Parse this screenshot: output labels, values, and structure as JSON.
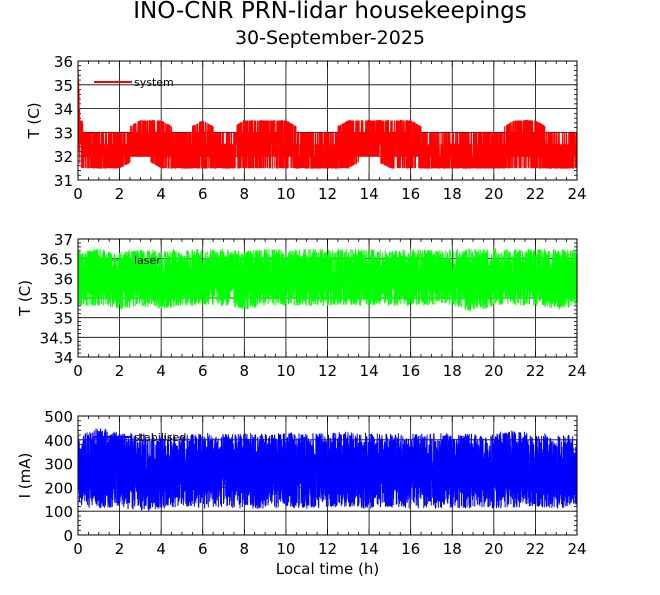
{
  "figure": {
    "title": "INO-CNR PRN-lidar housekeepings",
    "subtitle": "30-September-2025"
  },
  "chart_data": [
    {
      "type": "line",
      "ylabel": "T (C)",
      "xlabel": "",
      "xlim": [
        0,
        24
      ],
      "ylim": [
        31,
        36
      ],
      "xticks": [
        "0",
        "2",
        "4",
        "6",
        "8",
        "10",
        "12",
        "14",
        "16",
        "18",
        "20",
        "22",
        "24"
      ],
      "yticks": [
        "31",
        "32",
        "33",
        "34",
        "35",
        "36"
      ],
      "grid": true,
      "legend_position": "top-left",
      "series": [
        {
          "name": "system",
          "color": "#ff0000",
          "x": [
            0,
            0.1,
            0.3,
            1,
            2,
            3,
            4,
            5,
            6,
            7,
            8,
            9,
            10,
            11,
            12,
            13,
            14,
            15,
            16,
            17,
            18,
            19,
            20,
            21,
            22,
            23,
            24
          ],
          "y": [
            35.7,
            33,
            32.5,
            32,
            32,
            32.5,
            32.5,
            32,
            32.5,
            32,
            32.5,
            32.5,
            32.5,
            32,
            32,
            32.5,
            32.5,
            32.5,
            32.5,
            32,
            32,
            32,
            32,
            32.5,
            32.5,
            32,
            32
          ],
          "min": [
            33,
            31.5,
            31.5,
            31.5,
            31.5,
            32,
            31.5,
            31.5,
            31.5,
            31.5,
            31.5,
            31.5,
            31.5,
            31.5,
            31.5,
            31.5,
            32,
            31.5,
            31.5,
            31.5,
            31.5,
            31.5,
            31.5,
            31.5,
            31.5,
            31.5,
            31.5
          ],
          "max": [
            35.7,
            34,
            33,
            33,
            33,
            33.5,
            33.5,
            33,
            33.5,
            33,
            33.5,
            33.5,
            33.5,
            33,
            33,
            33.5,
            33.5,
            33.5,
            33.5,
            33,
            33,
            33,
            33,
            33.5,
            33.5,
            33,
            33
          ]
        }
      ]
    },
    {
      "type": "line",
      "ylabel": "T (C)",
      "xlabel": "",
      "xlim": [
        0,
        24
      ],
      "ylim": [
        34,
        37
      ],
      "xticks": [
        "0",
        "2",
        "4",
        "6",
        "8",
        "10",
        "12",
        "14",
        "16",
        "18",
        "20",
        "22",
        "24"
      ],
      "yticks": [
        "34",
        "34.5",
        "35",
        "35.5",
        "36",
        "36.5",
        "37"
      ],
      "grid": true,
      "legend_position": "top-left",
      "series": [
        {
          "name": "laser",
          "color": "#00ff00",
          "x": [
            0,
            1,
            2,
            3,
            4,
            5,
            6,
            7,
            8,
            9,
            10,
            11,
            12,
            13,
            14,
            15,
            16,
            17,
            18,
            19,
            20,
            21,
            22,
            23,
            24
          ],
          "y": [
            36.0,
            36.0,
            36.0,
            36.0,
            36.0,
            36.0,
            36.0,
            36.0,
            36.0,
            36.0,
            36.0,
            36.0,
            36.0,
            36.0,
            36.0,
            36.0,
            36.0,
            36.0,
            36.0,
            36.0,
            36.0,
            36.0,
            36.0,
            36.0,
            36.0
          ],
          "min": [
            35.3,
            35.3,
            35.2,
            35.3,
            35.2,
            35.3,
            35.3,
            35.3,
            35.2,
            35.3,
            35.3,
            35.3,
            35.3,
            35.3,
            35.3,
            35.3,
            35.3,
            35.3,
            35.3,
            35.1,
            35.3,
            35.3,
            35.3,
            35.2,
            35.3
          ],
          "max": [
            36.75,
            36.75,
            36.7,
            36.75,
            36.75,
            36.75,
            36.75,
            36.75,
            36.7,
            36.75,
            36.75,
            36.75,
            36.75,
            36.75,
            36.75,
            36.7,
            36.75,
            36.75,
            36.75,
            36.75,
            36.75,
            36.75,
            36.75,
            36.75,
            36.75
          ]
        }
      ]
    },
    {
      "type": "line",
      "ylabel": "I (mA)",
      "xlabel": "Local time (h)",
      "xlim": [
        0,
        24
      ],
      "ylim": [
        0,
        500
      ],
      "xticks": [
        "0",
        "2",
        "4",
        "6",
        "8",
        "10",
        "12",
        "14",
        "16",
        "18",
        "20",
        "22",
        "24"
      ],
      "yticks": [
        "0",
        "100",
        "200",
        "300",
        "400",
        "500"
      ],
      "grid": true,
      "legend_position": "top-left",
      "series": [
        {
          "name": "stabilised",
          "color": "#0000ff",
          "x": [
            0,
            1,
            2,
            3,
            4,
            5,
            6,
            7,
            8,
            9,
            10,
            11,
            12,
            13,
            14,
            15,
            16,
            17,
            18,
            19,
            20,
            21,
            22,
            23,
            24
          ],
          "y": [
            270,
            270,
            270,
            270,
            270,
            270,
            270,
            270,
            270,
            270,
            270,
            270,
            270,
            270,
            270,
            270,
            270,
            270,
            270,
            270,
            270,
            270,
            270,
            270,
            270
          ],
          "min": [
            120,
            110,
            115,
            95,
            110,
            115,
            110,
            115,
            110,
            110,
            115,
            110,
            115,
            115,
            110,
            115,
            110,
            110,
            115,
            110,
            110,
            115,
            115,
            110,
            120
          ],
          "max": [
            420,
            460,
            430,
            430,
            425,
            425,
            430,
            425,
            430,
            425,
            430,
            430,
            430,
            435,
            430,
            430,
            425,
            430,
            430,
            425,
            430,
            445,
            430,
            425,
            420
          ]
        }
      ]
    }
  ]
}
